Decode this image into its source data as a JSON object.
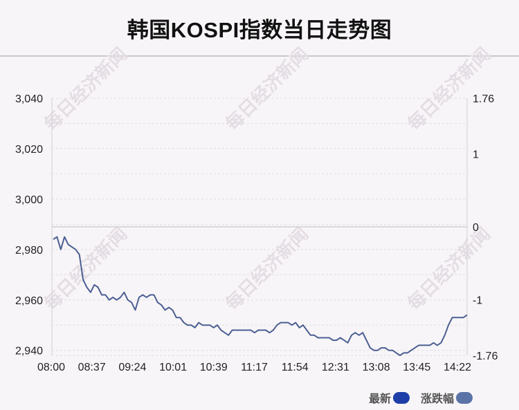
{
  "title": "韩国KOSPI指数当日走势图",
  "watermark": "每日经济新闻",
  "colors": {
    "line": "#4a5e92",
    "legend_latest": "#1f3fa8",
    "legend_change": "#5c73a8"
  },
  "legend": {
    "latest": "最新",
    "change": "涨跌幅"
  },
  "chart_data": {
    "type": "line",
    "title": "韩国KOSPI指数当日走势图",
    "x_ticks": [
      "08:00",
      "08:37",
      "09:24",
      "10:01",
      "10:39",
      "11:17",
      "11:54",
      "12:31",
      "13:08",
      "13:45",
      "14:22"
    ],
    "y_left_ticks": [
      "3,040",
      "3,020",
      "3,000",
      "2,980",
      "2,960",
      "2,940"
    ],
    "y_right_ticks": [
      "1.76",
      "1",
      "0",
      "-1",
      "-1.76"
    ],
    "ylim_left": [
      2938,
      3040
    ],
    "ylim_right": [
      -1.76,
      1.76
    ],
    "baseline": 2989,
    "grid": true,
    "legend_position": "bottom-right",
    "series": [
      {
        "name": "最新",
        "values": [
          2984,
          2985,
          2980,
          2985,
          2982,
          2981,
          2980,
          2978,
          2968,
          2965,
          2963,
          2966,
          2965,
          2962,
          2962,
          2960,
          2961,
          2960,
          2961,
          2963,
          2960,
          2959,
          2956,
          2961,
          2962,
          2961,
          2962,
          2962,
          2959,
          2958,
          2956,
          2957,
          2956,
          2953,
          2953,
          2951,
          2950,
          2950,
          2949,
          2951,
          2950,
          2950,
          2950,
          2949,
          2950,
          2948,
          2947,
          2946,
          2948,
          2948,
          2948,
          2948,
          2948,
          2948,
          2947,
          2948,
          2948,
          2948,
          2947,
          2948,
          2950,
          2951,
          2951,
          2951,
          2950,
          2951,
          2949,
          2950,
          2948,
          2946,
          2946,
          2945,
          2945,
          2945,
          2945,
          2944,
          2944,
          2945,
          2944,
          2943,
          2946,
          2947,
          2946,
          2947,
          2944,
          2941,
          2940,
          2940,
          2941,
          2941,
          2940,
          2940,
          2939,
          2938,
          2939,
          2939,
          2940,
          2941,
          2942,
          2942,
          2942,
          2942,
          2943,
          2942,
          2943,
          2946,
          2950,
          2953,
          2953,
          2953,
          2953,
          2954
        ]
      }
    ]
  }
}
